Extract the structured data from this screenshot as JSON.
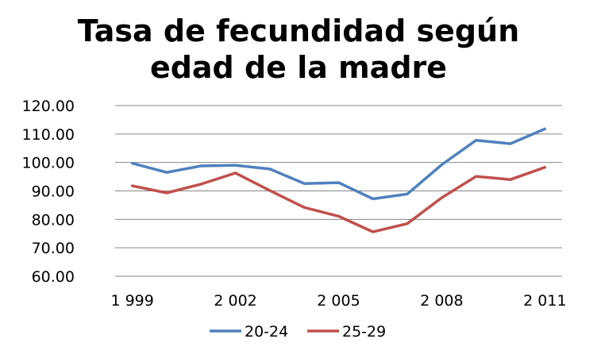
{
  "chart_data": {
    "type": "line",
    "title_lines": [
      "Tasa de fecundidad según",
      "edad de la madre"
    ],
    "x": [
      "1999",
      "2000",
      "2001",
      "2002",
      "2003",
      "2004",
      "2005",
      "2006",
      "2007",
      "2008",
      "2009",
      "2010",
      "2011"
    ],
    "x_tick_labels": [
      "1 999",
      "2 002",
      "2 005",
      "2 008",
      "2 011"
    ],
    "x_tick_values": [
      "1999",
      "2002",
      "2005",
      "2008",
      "2011"
    ],
    "y_tick_labels": [
      "60.00",
      "70.00",
      "80.00",
      "90.00",
      "100.00",
      "110.00",
      "120.00"
    ],
    "y_tick_values": [
      60,
      70,
      80,
      90,
      100,
      110,
      120
    ],
    "ylim": [
      60,
      120
    ],
    "grid": true,
    "legend_position": "bottom",
    "series": [
      {
        "name": "20-24",
        "color": "#4F81BD",
        "values": [
          99.7,
          96.5,
          98.8,
          99.0,
          97.7,
          92.6,
          92.9,
          87.2,
          88.9,
          99.2,
          107.8,
          106.6,
          111.8
        ]
      },
      {
        "name": "25-29",
        "color": "#C0504D",
        "values": [
          91.8,
          89.3,
          92.4,
          96.3,
          90.1,
          84.2,
          81.1,
          75.6,
          78.5,
          87.6,
          95.1,
          94.0,
          98.3
        ]
      }
    ]
  }
}
